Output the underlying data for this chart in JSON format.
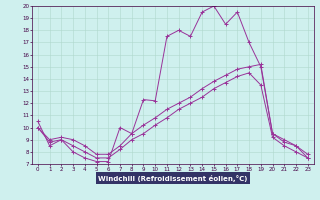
{
  "xlabel": "Windchill (Refroidissement éolien,°C)",
  "background_color": "#cff0ee",
  "grid_color": "#b0d8cc",
  "line_color": "#993399",
  "xlabel_bg": "#333366",
  "xlabel_fg": "#ffffff",
  "xlim": [
    -0.5,
    23.5
  ],
  "ylim": [
    7,
    20
  ],
  "xticks": [
    0,
    1,
    2,
    3,
    4,
    5,
    6,
    7,
    8,
    9,
    10,
    11,
    12,
    13,
    14,
    15,
    16,
    17,
    18,
    19,
    20,
    21,
    22,
    23
  ],
  "yticks": [
    7,
    8,
    9,
    10,
    11,
    12,
    13,
    14,
    15,
    16,
    17,
    18,
    19,
    20
  ],
  "line1_x": [
    0,
    1,
    2,
    3,
    4,
    5,
    6,
    7,
    8,
    9,
    10,
    11,
    12,
    13,
    14,
    15,
    16,
    17,
    18,
    19,
    20,
    21,
    22,
    23
  ],
  "line1_y": [
    10.5,
    8.5,
    9.0,
    8.0,
    7.5,
    7.2,
    7.2,
    10.0,
    9.5,
    12.3,
    12.2,
    17.5,
    18.0,
    17.5,
    19.5,
    20.0,
    18.5,
    19.5,
    17.0,
    15.0,
    9.5,
    9.0,
    8.5,
    7.5
  ],
  "line2_x": [
    0,
    1,
    2,
    3,
    4,
    5,
    6,
    7,
    8,
    9,
    10,
    11,
    12,
    13,
    14,
    15,
    16,
    17,
    18,
    19,
    20,
    21,
    22,
    23
  ],
  "line2_y": [
    10.0,
    9.0,
    9.2,
    9.0,
    8.5,
    7.8,
    7.8,
    8.5,
    9.5,
    10.2,
    10.8,
    11.5,
    12.0,
    12.5,
    13.2,
    13.8,
    14.3,
    14.8,
    15.0,
    15.2,
    9.5,
    8.8,
    8.5,
    7.8
  ],
  "line3_x": [
    0,
    1,
    2,
    3,
    4,
    5,
    6,
    7,
    8,
    9,
    10,
    11,
    12,
    13,
    14,
    15,
    16,
    17,
    18,
    19,
    20,
    21,
    22,
    23
  ],
  "line3_y": [
    10.0,
    8.8,
    9.0,
    8.5,
    8.0,
    7.5,
    7.5,
    8.2,
    9.0,
    9.5,
    10.2,
    10.8,
    11.5,
    12.0,
    12.5,
    13.2,
    13.7,
    14.2,
    14.5,
    13.5,
    9.2,
    8.5,
    8.0,
    7.5
  ]
}
